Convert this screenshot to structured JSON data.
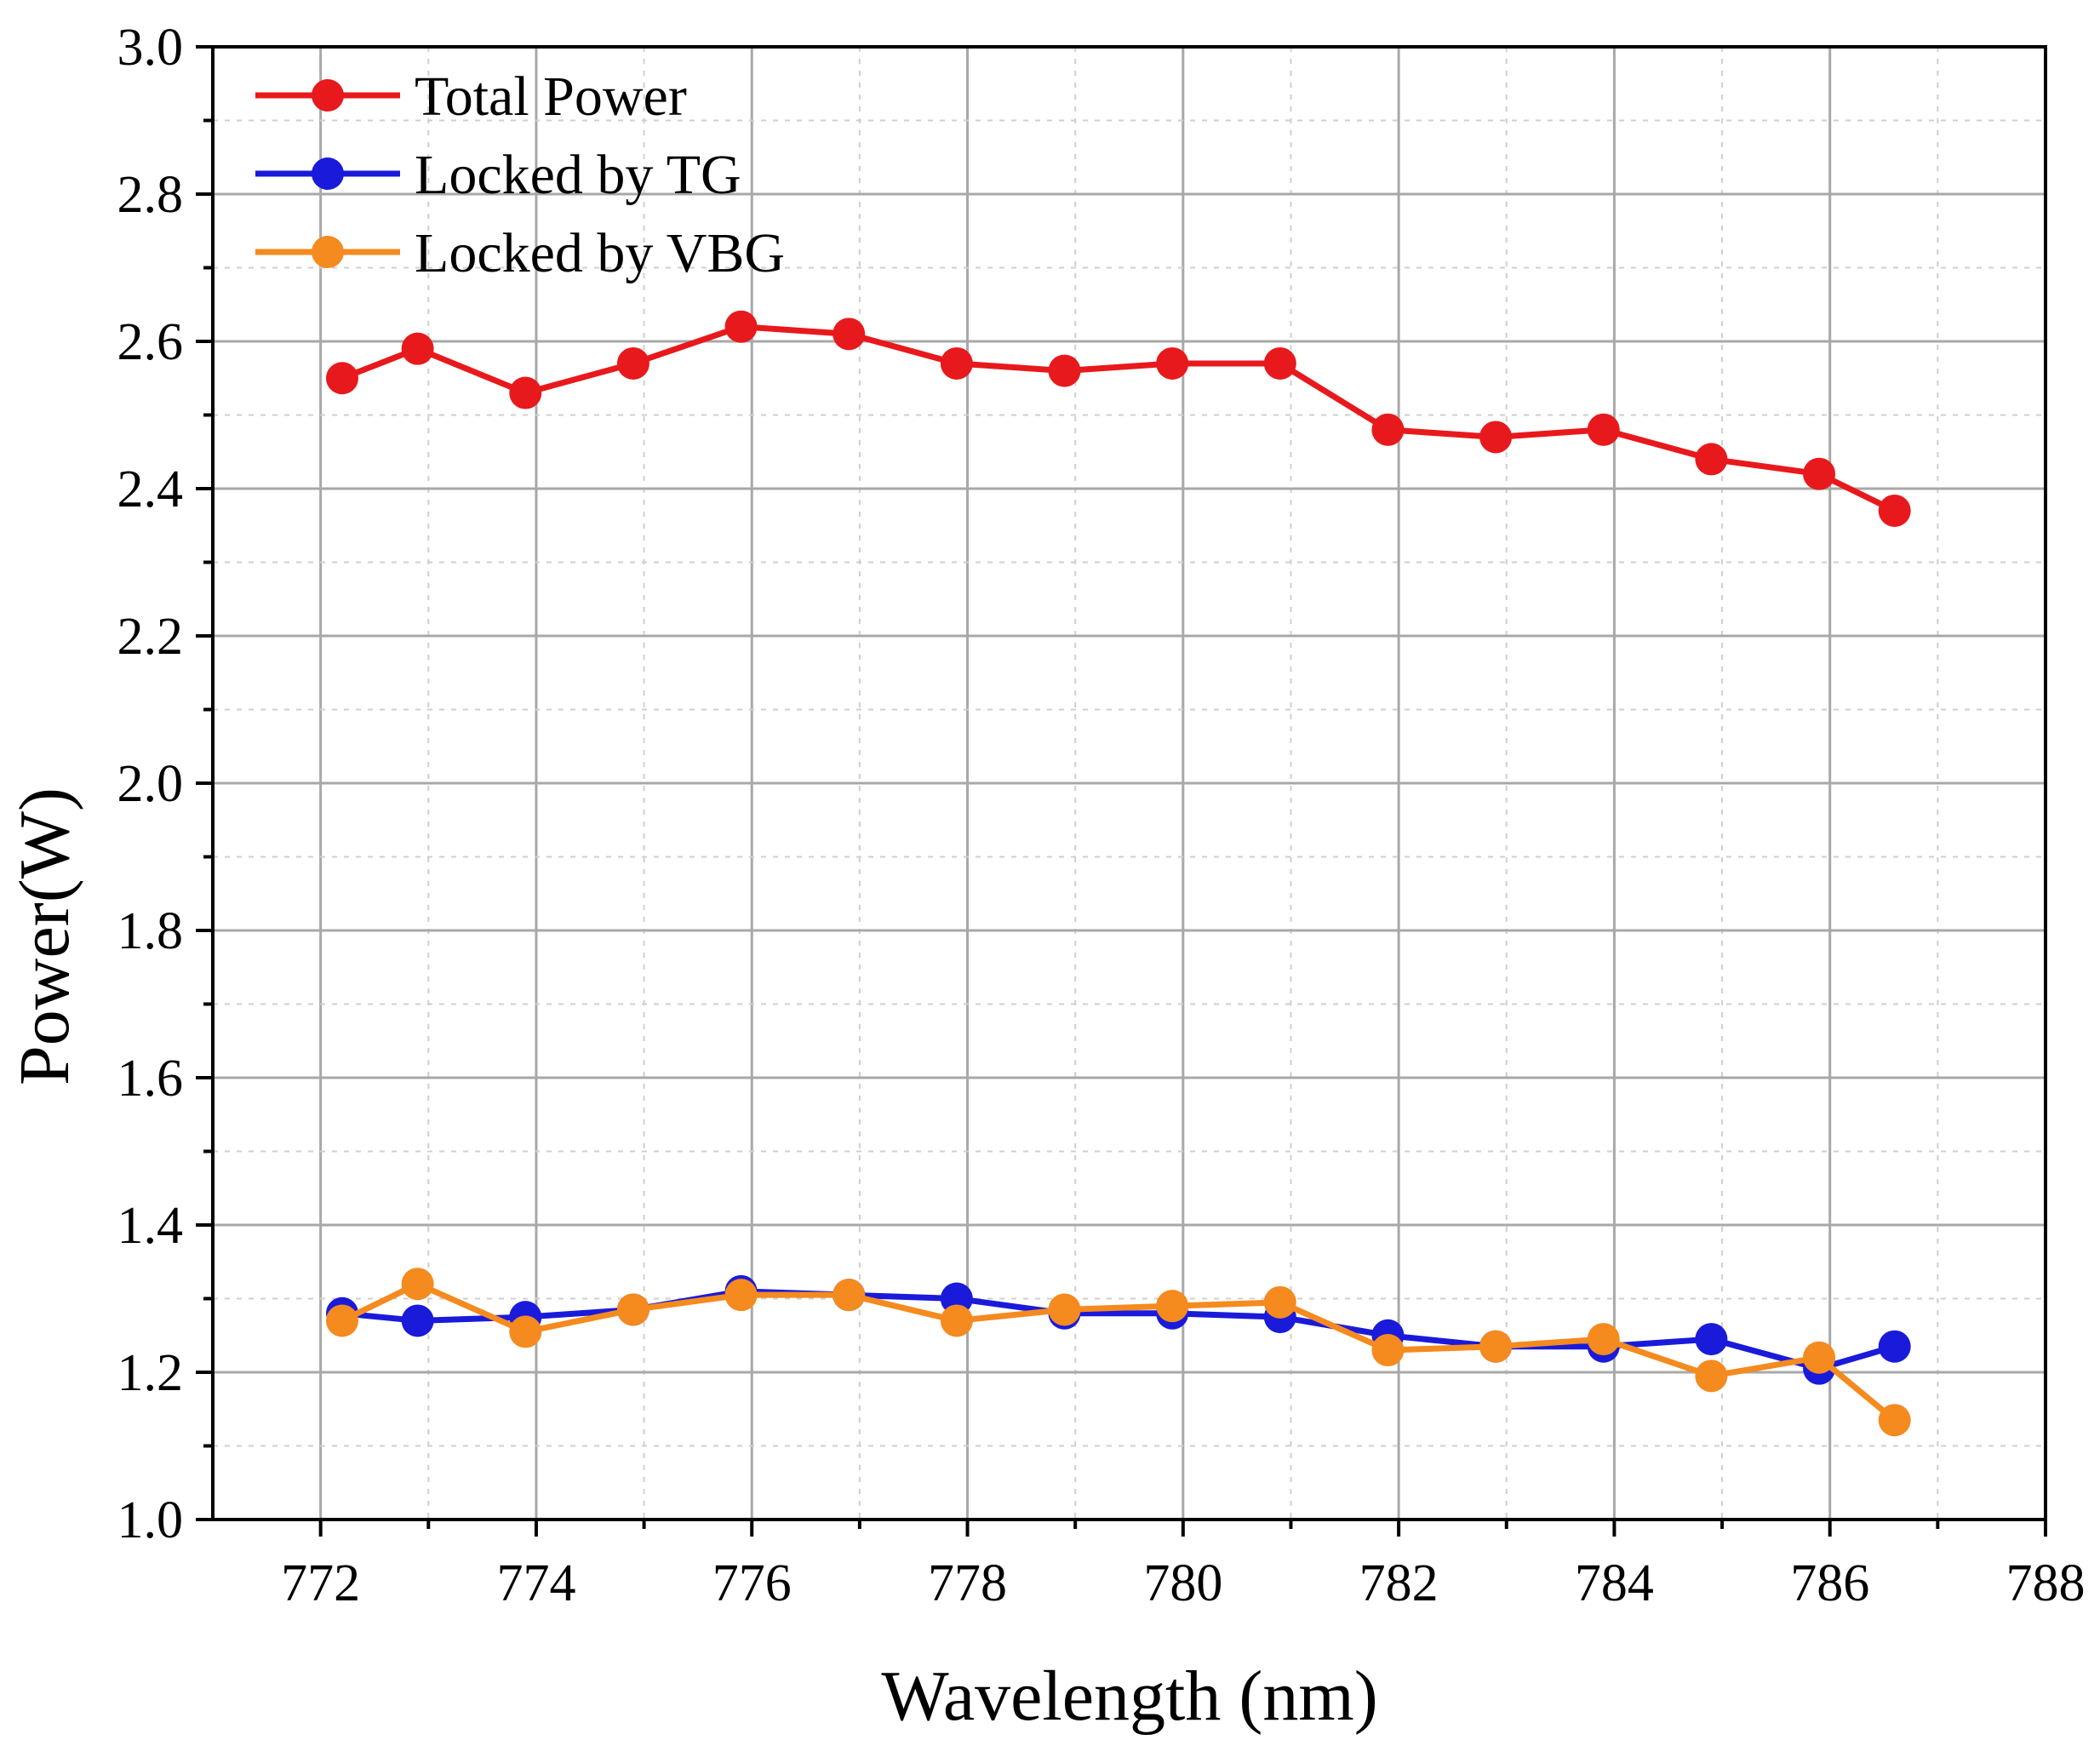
{
  "chart_data": {
    "type": "line",
    "title": "",
    "xlabel": "Wavelength (nm)",
    "ylabel": "Power(W)",
    "xlim": [
      771,
      788
    ],
    "ylim": [
      1.0,
      3.0
    ],
    "x_ticks": [
      "772",
      "774",
      "776",
      "778",
      "780",
      "782",
      "784",
      "786",
      "788"
    ],
    "y_ticks": [
      "1.0",
      "1.2",
      "1.4",
      "1.6",
      "1.8",
      "2.0",
      "2.2",
      "2.4",
      "2.6",
      "2.8",
      "3.0"
    ],
    "grid": true,
    "legend_position": "top-left",
    "series": [
      {
        "name": "Total Power",
        "color": "#e8191c",
        "x": [
          772.2,
          772.9,
          773.9,
          774.9,
          775.9,
          776.9,
          777.9,
          778.9,
          779.9,
          780.9,
          781.9,
          782.9,
          783.9,
          784.9,
          785.9,
          786.6
        ],
        "y": [
          2.55,
          2.59,
          2.53,
          2.57,
          2.62,
          2.61,
          2.57,
          2.56,
          2.57,
          2.57,
          2.48,
          2.47,
          2.48,
          2.44,
          2.42,
          2.37
        ]
      },
      {
        "name": "Locked by TG",
        "color": "#1a1adb",
        "x": [
          772.2,
          772.9,
          773.9,
          774.9,
          775.9,
          776.9,
          777.9,
          778.9,
          779.9,
          780.9,
          781.9,
          782.9,
          783.9,
          784.9,
          785.9,
          786.6
        ],
        "y": [
          1.28,
          1.27,
          1.275,
          1.285,
          1.31,
          1.305,
          1.3,
          1.28,
          1.28,
          1.275,
          1.25,
          1.235,
          1.235,
          1.245,
          1.205,
          1.235
        ]
      },
      {
        "name": "Locked by VBG",
        "color": "#f58a1f",
        "x": [
          772.2,
          772.9,
          773.9,
          774.9,
          775.9,
          776.9,
          777.9,
          778.9,
          779.9,
          780.9,
          781.9,
          782.9,
          783.9,
          784.9,
          785.9,
          786.6
        ],
        "y": [
          1.27,
          1.32,
          1.255,
          1.285,
          1.305,
          1.305,
          1.27,
          1.285,
          1.29,
          1.295,
          1.23,
          1.235,
          1.245,
          1.195,
          1.22,
          1.135
        ]
      }
    ]
  }
}
